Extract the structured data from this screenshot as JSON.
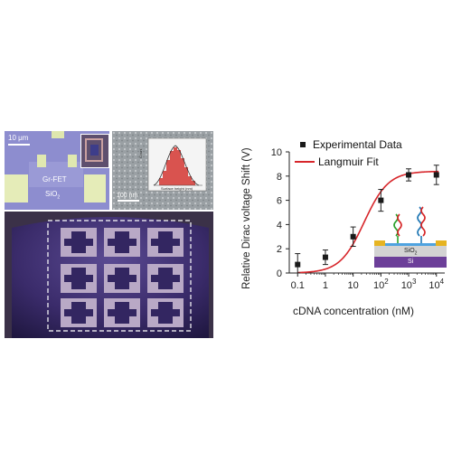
{
  "micrograph": {
    "scale_bar": "10 μm",
    "device_label": "Gr-FET",
    "substrate_label": "SiO",
    "substrate_sub": "2"
  },
  "sem": {
    "scale_bar": "100 nm",
    "inset_ylabel": "Count",
    "inset_xlabel": "Surface height (nm)"
  },
  "chart_data": {
    "type": "scatter",
    "xlabel": "cDNA concentration (nM)",
    "ylabel": "Relative Dirac voltage Shift (V)",
    "x_scale": "log",
    "x_ticks": [
      0.1,
      1,
      10,
      100,
      1000,
      10000
    ],
    "x_tick_labels": [
      "0.1",
      "1",
      "10",
      "10^2",
      "10^3",
      "10^4"
    ],
    "xlim": [
      0.05,
      20000
    ],
    "ylim": [
      0,
      10
    ],
    "y_ticks": [
      0,
      2,
      4,
      6,
      8,
      10
    ],
    "legend_position": "top-left",
    "series": [
      {
        "name": "Experimental Data",
        "marker": "square",
        "color": "#1a1a1a",
        "x": [
          0.1,
          1,
          10,
          100,
          1000,
          10000
        ],
        "y": [
          0.7,
          1.3,
          3.0,
          6.0,
          8.1,
          8.1
        ],
        "y_err": [
          0.9,
          0.6,
          0.8,
          0.9,
          0.5,
          0.8
        ]
      },
      {
        "name": "Langmuir Fit",
        "type": "line",
        "color": "#d7262b",
        "model": {
          "Vmax": 8.4,
          "Kd_nM": 25
        }
      }
    ]
  },
  "schematic": {
    "oxide_label": "SiO",
    "oxide_sub": "2",
    "substrate_label": "Si"
  }
}
